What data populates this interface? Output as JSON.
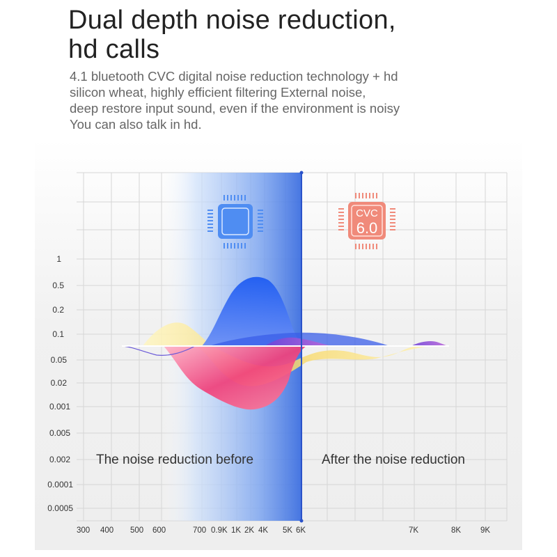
{
  "headline": [
    "Dual depth noise reduction,",
    "hd calls"
  ],
  "description": [
    "4.1 bluetooth CVC digital noise reduction technology + hd",
    "silicon wheat, highly efficient filtering External noise,",
    "deep restore input sound, even if the environment is noisy",
    "You can also talk in hd."
  ],
  "chip": {
    "line1": "CVC",
    "line2": "6.0"
  },
  "y_labels": [
    "1",
    "0.5",
    "0.2",
    "0.1",
    "0.05",
    "0.02",
    "0.001",
    "0.005",
    "0.002",
    "0.0001",
    "0.0005"
  ],
  "x_labels": [
    "300",
    "400",
    "500",
    "600",
    "700",
    "0.9K",
    "1K",
    "2K",
    "4K",
    "5K",
    "6K",
    "7K",
    "8K",
    "9K"
  ],
  "captions": {
    "before": "The noise reduction before",
    "after": "After the noise reduction"
  },
  "colors": {
    "blue_panel": "#3d6fe0",
    "divider": "#2a52c9",
    "chip_blue": "#4f8df2",
    "chip_red": "#f08a7a",
    "pink": "#f0407a",
    "yellow": "#f7e58a",
    "blue_wave": "#3a5ee8"
  }
}
